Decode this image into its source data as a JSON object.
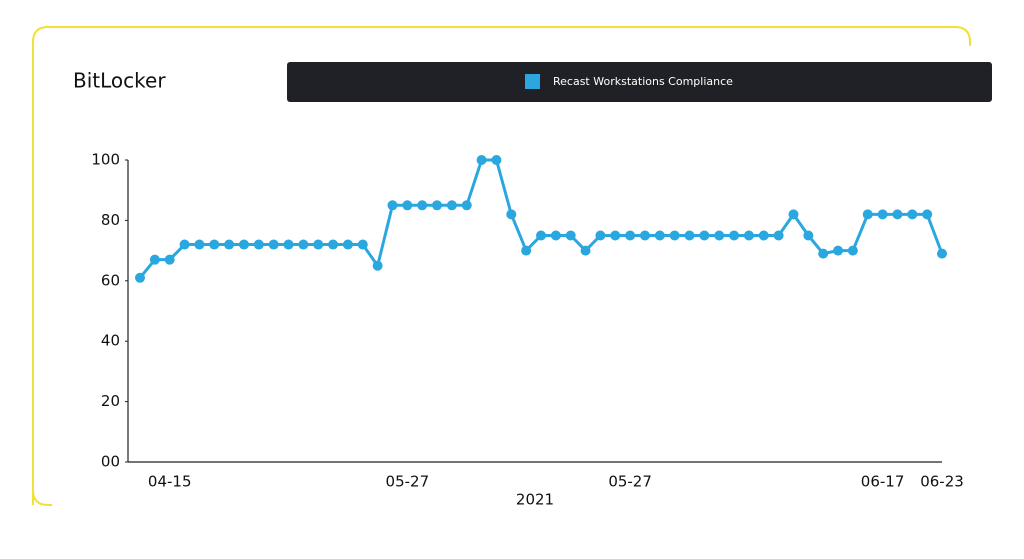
{
  "chart_data": {
    "type": "line",
    "title": "BitLocker",
    "x_label": "2021",
    "categories": [
      null,
      null,
      "04-15",
      null,
      null,
      null,
      null,
      null,
      null,
      null,
      null,
      null,
      null,
      null,
      null,
      null,
      null,
      null,
      "05-27",
      null,
      null,
      null,
      null,
      null,
      null,
      null,
      null,
      null,
      null,
      null,
      null,
      null,
      null,
      "05-27",
      null,
      null,
      null,
      null,
      null,
      null,
      null,
      null,
      null,
      null,
      null,
      null,
      null,
      null,
      null,
      null,
      "06-17",
      null,
      null,
      null,
      "06-23"
    ],
    "series": [
      {
        "name": "Recast Workstations Compliance",
        "color": "#2aa7df",
        "values": [
          61,
          67,
          67,
          72,
          72,
          72,
          72,
          72,
          72,
          72,
          72,
          72,
          72,
          72,
          72,
          72,
          65,
          85,
          85,
          85,
          85,
          85,
          85,
          100,
          100,
          82,
          70,
          75,
          75,
          75,
          70,
          75,
          75,
          75,
          75,
          75,
          75,
          75,
          75,
          75,
          75,
          75,
          75,
          75,
          82,
          75,
          69,
          70,
          70,
          82,
          82,
          82,
          82,
          82,
          69
        ]
      }
    ],
    "ylim": [
      0,
      100
    ],
    "yticks": [
      {
        "value": 0,
        "label": "00"
      },
      20,
      40,
      60,
      80,
      100
    ]
  }
}
